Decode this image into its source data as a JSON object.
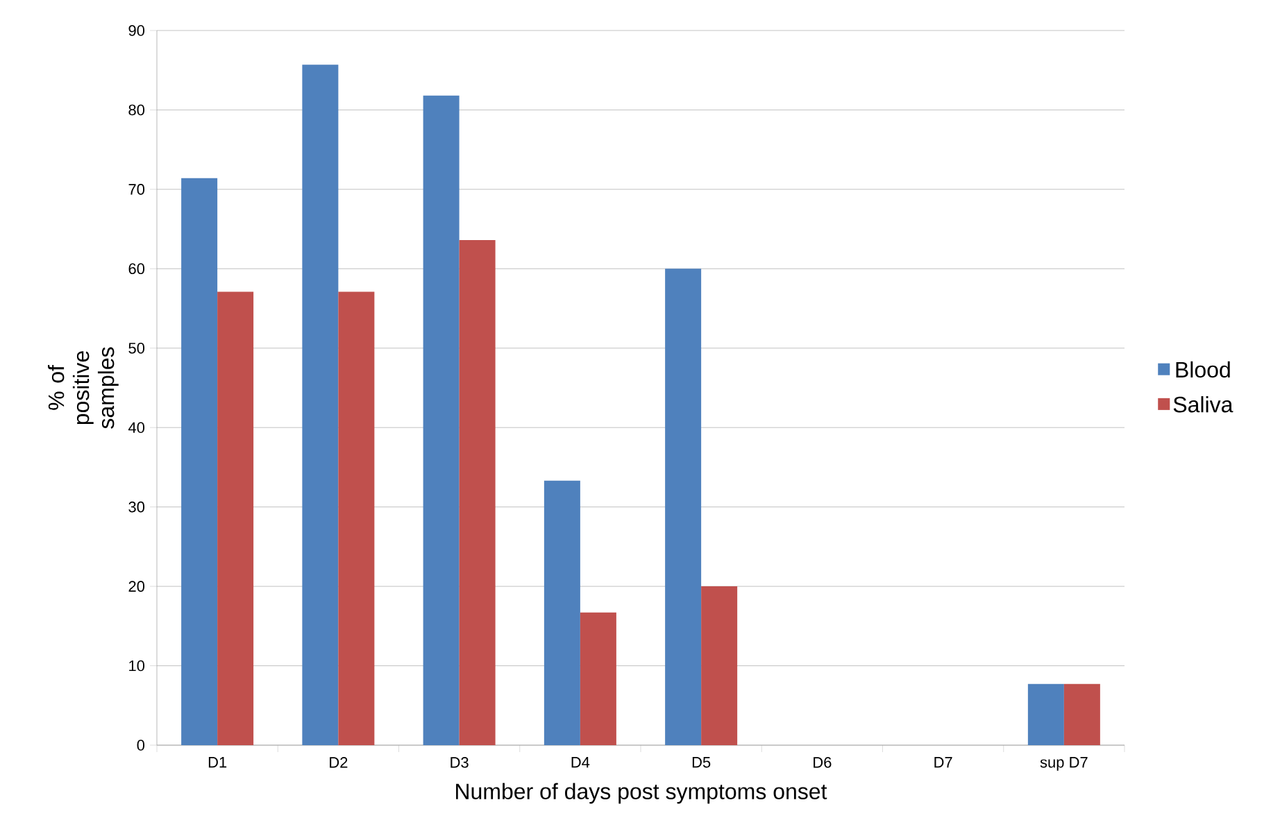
{
  "chart_data": {
    "type": "bar",
    "xlabel": "Number of days post symptoms onset",
    "ylabel": "% of positive samples",
    "categories": [
      "D1",
      "D2",
      "D3",
      "D4",
      "D5",
      "D6",
      "D7",
      "sup D7"
    ],
    "series": [
      {
        "name": "Blood",
        "color": "#4f81bd",
        "values": [
          71.4,
          85.7,
          81.8,
          33.3,
          60,
          0,
          0,
          7.7
        ]
      },
      {
        "name": "Saliva",
        "color": "#c0504d",
        "values": [
          57.1,
          57.1,
          63.6,
          16.7,
          20,
          0,
          0,
          7.7
        ]
      }
    ],
    "ylim": [
      0,
      90
    ],
    "yticks": [
      0,
      10,
      20,
      30,
      40,
      50,
      60,
      70,
      80,
      90
    ],
    "grid": "y",
    "legend": "right"
  }
}
